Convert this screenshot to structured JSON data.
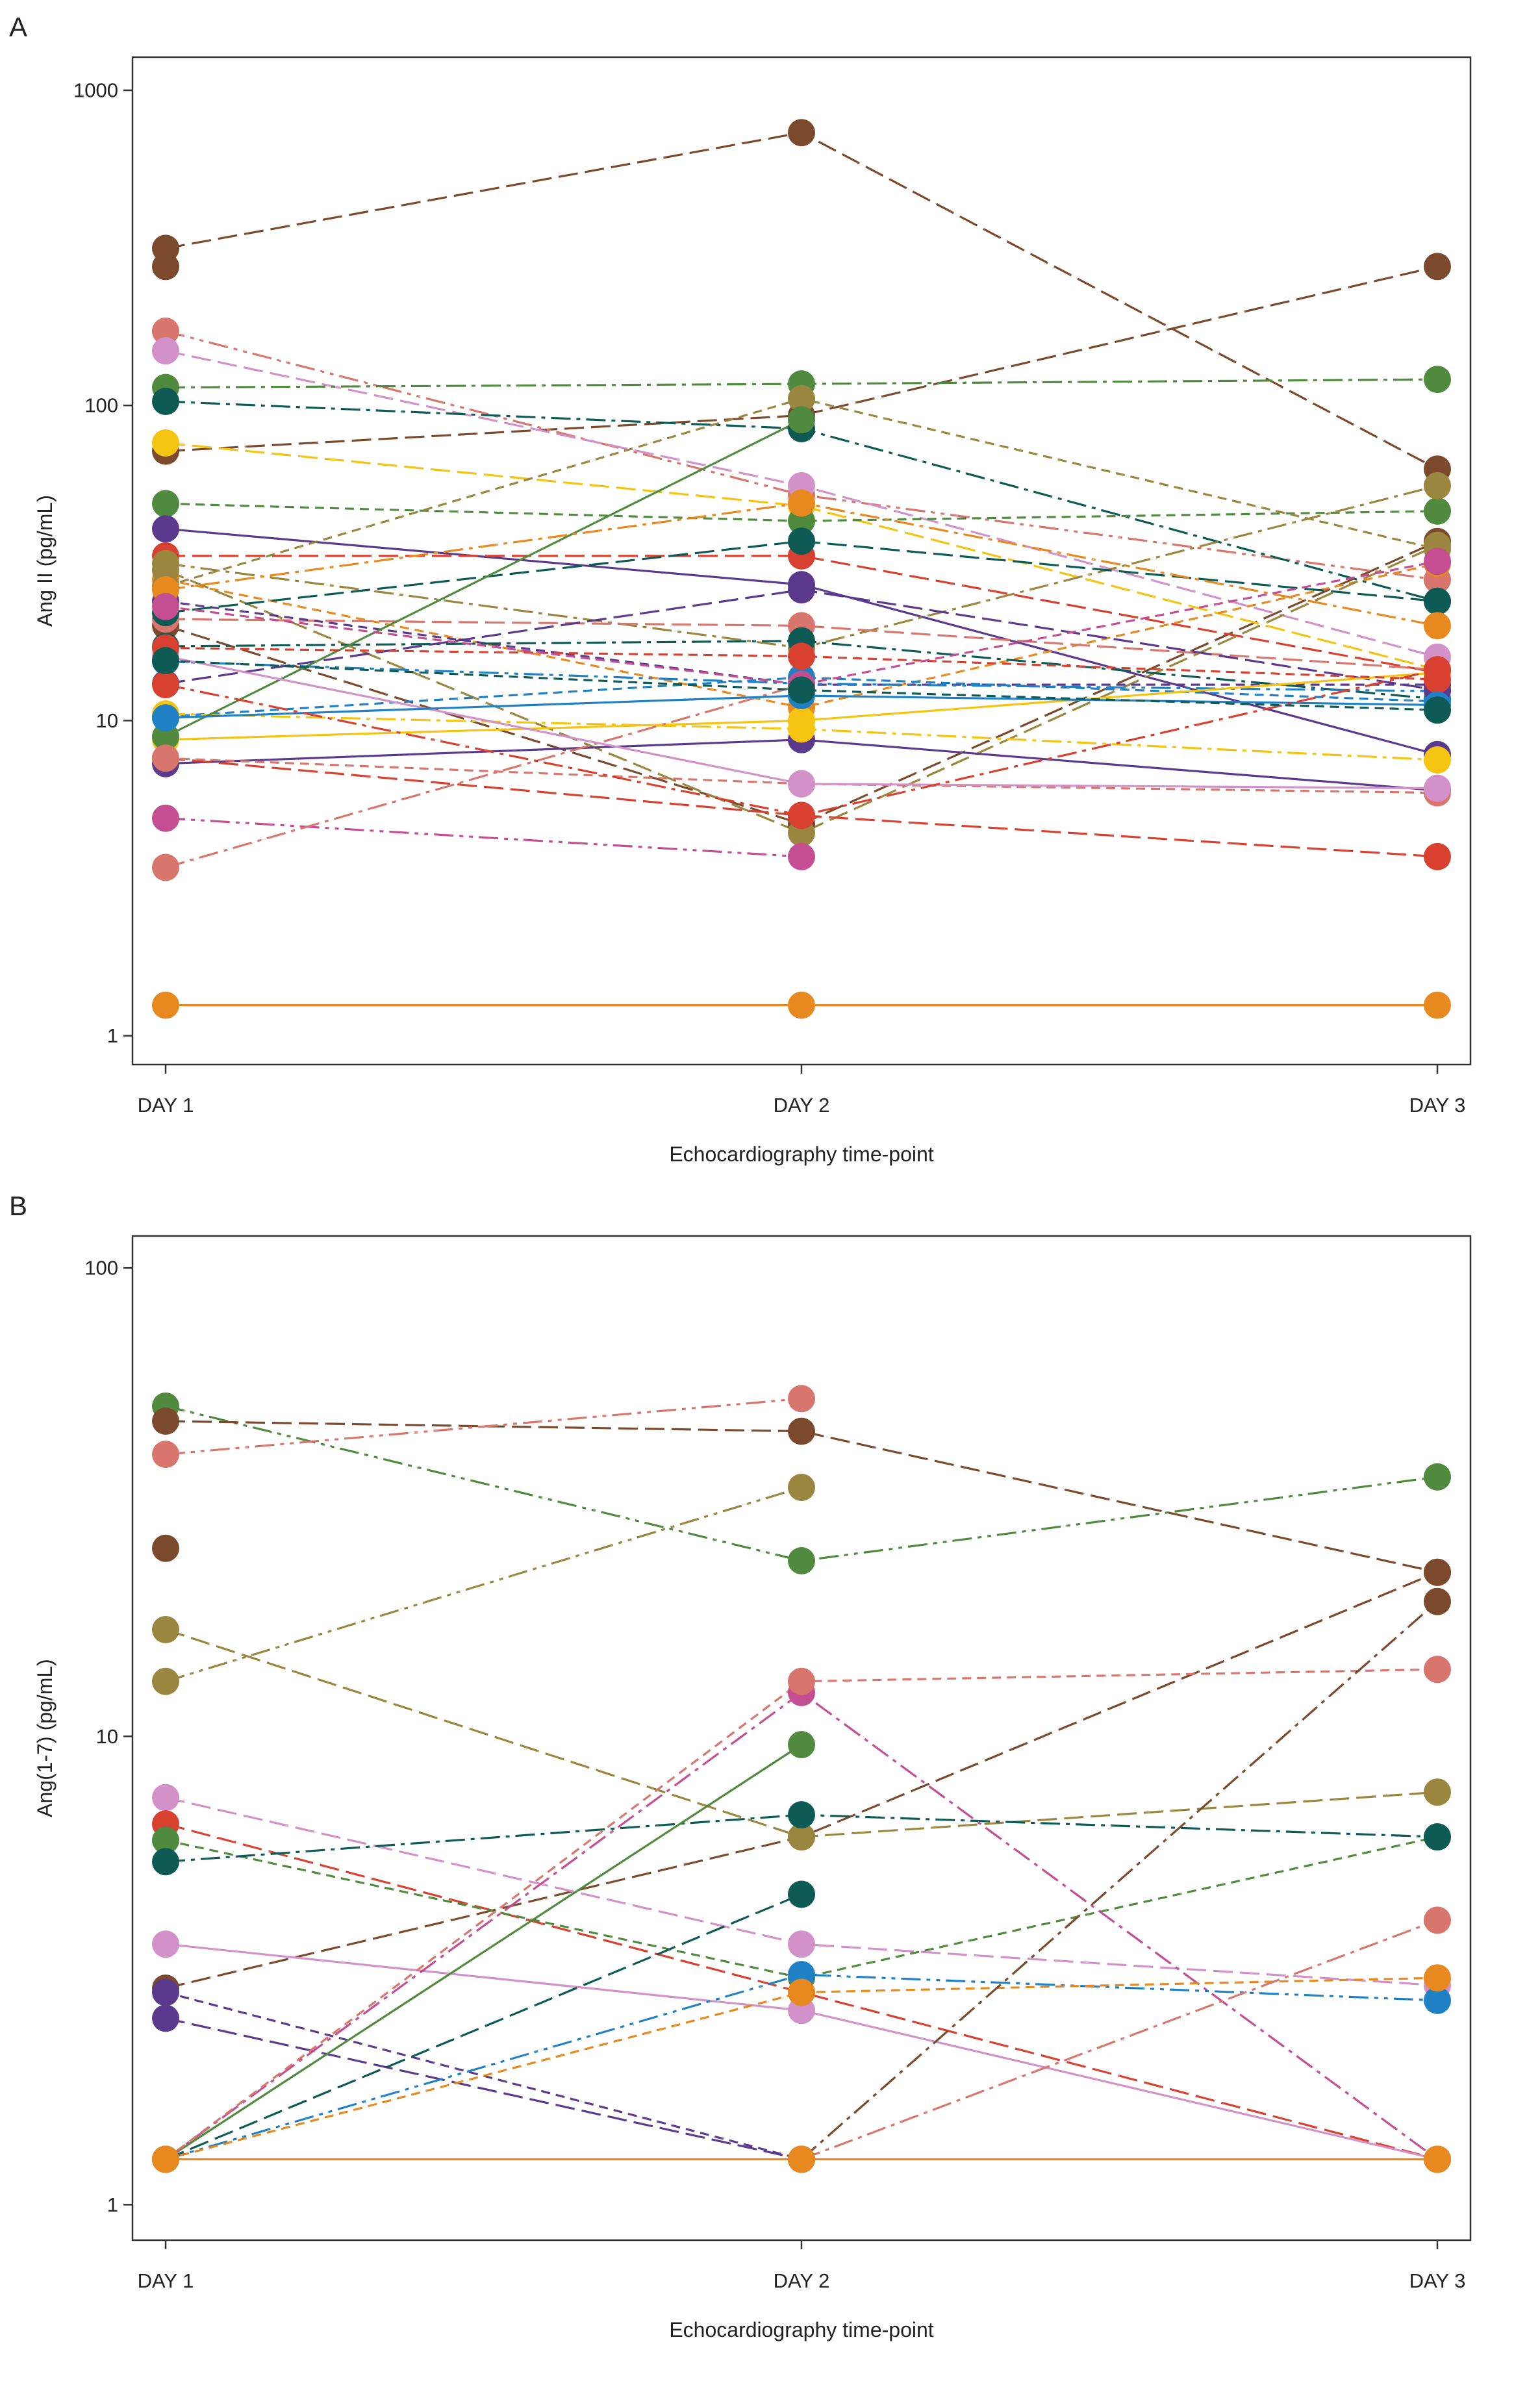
{
  "chart_data": [
    {
      "panel": "A",
      "type": "line",
      "yscale": "log",
      "xlabel": "Echocardiography time-point",
      "ylabel": "Ang II (pg/mL)",
      "categories": [
        "DAY 1",
        "DAY 2",
        "DAY 3"
      ],
      "yticks": [
        1000,
        100,
        10,
        1
      ],
      "ylim": [
        0.81,
        1274
      ],
      "grid": false,
      "series": [
        {
          "color": "#7b4a2c",
          "dash": 2,
          "values": [
            315,
            734,
            62.8
          ]
        },
        {
          "color": "#7b4a2c",
          "dash": 2,
          "values": [
            71.6,
            93,
            276
          ]
        },
        {
          "color": "#7b4a2c",
          "dash": 0,
          "values": [
            276,
            null,
            null
          ]
        },
        {
          "color": "#7b4a2c",
          "dash": 2,
          "values": [
            20,
            4.7,
            37
          ]
        },
        {
          "color": "#d8756c",
          "dash": 4,
          "values": [
            172,
            52,
            28
          ]
        },
        {
          "color": "#d391c9",
          "dash": 2,
          "values": [
            149,
            55.6,
            15.9
          ]
        },
        {
          "color": "#4f8a3f",
          "dash": 3,
          "values": [
            114,
            117,
            121
          ]
        },
        {
          "color": "#0e5b55",
          "dash": 3,
          "values": [
            103,
            84.4,
            23.9
          ]
        },
        {
          "color": "#f4c411",
          "dash": 2,
          "values": [
            76,
            48,
            14.5
          ]
        },
        {
          "color": "#4f8a3f",
          "dash": 1,
          "values": [
            48.8,
            43,
            46.2
          ]
        },
        {
          "color": "#5b3a8d",
          "dash": 0,
          "values": [
            40.6,
            27,
            7.8
          ]
        },
        {
          "color": "#d8402f",
          "dash": 2,
          "values": [
            33.3,
            33.3,
            14.2
          ]
        },
        {
          "color": "#9a863e",
          "dash": 3,
          "values": [
            31.5,
            17,
            55.6
          ]
        },
        {
          "color": "#e8891f",
          "dash": 1,
          "values": [
            28,
            11,
            31.5
          ]
        },
        {
          "color": "#9a863e",
          "dash": 2,
          "values": [
            30,
            4.4,
            36
          ]
        },
        {
          "color": "#9a863e",
          "dash": 1,
          "values": [
            26.7,
            105,
            35
          ]
        },
        {
          "color": "#d8756c",
          "dash": 2,
          "values": [
            21,
            20,
            14.5
          ]
        },
        {
          "color": "#5b3a8d",
          "dash": 1,
          "values": [
            23.9,
            13,
            13
          ]
        },
        {
          "color": "#0e5b55",
          "dash": 2,
          "values": [
            22,
            37.1,
            23.9
          ]
        },
        {
          "color": "#0e5b55",
          "dash": 3,
          "values": [
            17.2,
            17.9,
            11.7
          ]
        },
        {
          "color": "#1f80c5",
          "dash": 4,
          "values": [
            15.4,
            13.1,
            12.4
          ]
        },
        {
          "color": "#1f80c5",
          "dash": 1,
          "values": [
            10.3,
            13.7,
            11.5
          ]
        },
        {
          "color": "#5b3a8d",
          "dash": 2,
          "values": [
            13.1,
            26,
            12.5
          ]
        },
        {
          "color": "#5b3a8d",
          "dash": 0,
          "values": [
            7.3,
            8.7,
            6.0
          ]
        },
        {
          "color": "#f4c411",
          "dash": 0,
          "values": [
            8.7,
            10,
            14.2
          ]
        },
        {
          "color": "#f4c411",
          "dash": 3,
          "values": [
            10.5,
            9.4,
            7.5
          ]
        },
        {
          "color": "#4f8a3f",
          "dash": 0,
          "values": [
            8.9,
            90,
            null
          ]
        },
        {
          "color": "#d8402f",
          "dash": 2,
          "values": [
            7.6,
            5.0,
            3.7
          ]
        },
        {
          "color": "#d8756c",
          "dash": 1,
          "values": [
            7.6,
            6.3,
            5.9
          ]
        },
        {
          "color": "#c54d91",
          "dash": 4,
          "values": [
            4.9,
            3.7,
            null
          ]
        },
        {
          "color": "#d8756c",
          "dash": 3,
          "values": [
            3.42,
            13,
            null
          ]
        },
        {
          "color": "#d391c9",
          "dash": 0,
          "values": [
            16,
            6.3,
            6.1
          ]
        },
        {
          "color": "#d8402f",
          "dash": 1,
          "values": [
            17,
            16,
            13.5
          ]
        },
        {
          "color": "#e8891f",
          "dash": 3,
          "values": [
            26,
            49,
            20
          ]
        },
        {
          "color": "#c54d91",
          "dash": 1,
          "values": [
            23,
            13,
            32
          ]
        },
        {
          "color": "#1f80c5",
          "dash": 0,
          "values": [
            10.2,
            12,
            11.2
          ]
        },
        {
          "color": "#d8402f",
          "dash": 3,
          "values": [
            13,
            5.0,
            14.5
          ]
        },
        {
          "color": "#0e5b55",
          "dash": 1,
          "values": [
            15.5,
            12.5,
            10.8
          ]
        },
        {
          "color": "#e8891f",
          "dash": 0,
          "values": [
            1.25,
            1.25,
            1.25
          ]
        }
      ]
    },
    {
      "panel": "B",
      "type": "line",
      "yscale": "log",
      "xlabel": "Echocardiography time-point",
      "ylabel": "Ang(1-7) (pg/mL)",
      "categories": [
        "DAY 1",
        "DAY 2",
        "DAY 3"
      ],
      "yticks": [
        100,
        10,
        1
      ],
      "ylim": [
        0.84,
        117
      ],
      "grid": false,
      "series": [
        {
          "color": "#7b4a2c",
          "dash": 2,
          "values": [
            2.9,
            6.1,
            22.4
          ]
        },
        {
          "color": "#4f8a3f",
          "dash": 4,
          "values": [
            50.7,
            23.7,
            35.8
          ]
        },
        {
          "color": "#7b4a2c",
          "dash": 2,
          "values": [
            47.1,
            44.8,
            22.4
          ]
        },
        {
          "color": "#d8756c",
          "dash": 4,
          "values": [
            40,
            52.6,
            null
          ]
        },
        {
          "color": "#7b4a2c",
          "dash": 0,
          "values": [
            25.2,
            null,
            null
          ]
        },
        {
          "color": "#9a863e",
          "dash": 2,
          "values": [
            16.9,
            6.1,
            7.6
          ]
        },
        {
          "color": "#9a863e",
          "dash": 4,
          "values": [
            13.1,
            34,
            null
          ]
        },
        {
          "color": "#d391c9",
          "dash": 2,
          "values": [
            7.4,
            3.6,
            2.94
          ]
        },
        {
          "color": "#d8402f",
          "dash": 2,
          "values": [
            6.5,
            2.84,
            1.25
          ]
        },
        {
          "color": "#4f8a3f",
          "dash": 1,
          "values": [
            6.0,
            3.05,
            6.1
          ]
        },
        {
          "color": "#0e5b55",
          "dash": 3,
          "values": [
            5.4,
            6.8,
            6.1
          ]
        },
        {
          "color": "#d391c9",
          "dash": 0,
          "values": [
            3.6,
            2.6,
            1.25
          ]
        },
        {
          "color": "#5b3a8d",
          "dash": 2,
          "values": [
            2.5,
            1.25,
            null
          ]
        },
        {
          "color": "#5b3a8d",
          "dash": 1,
          "values": [
            2.84,
            1.25,
            null
          ]
        },
        {
          "color": "#4f8a3f",
          "dash": 0,
          "values": [
            1.25,
            9.6,
            null
          ]
        },
        {
          "color": "#c54d91",
          "dash": 3,
          "values": [
            1.25,
            12.4,
            1.25
          ]
        },
        {
          "color": "#d8756c",
          "dash": 1,
          "values": [
            1.25,
            13.1,
            13.9
          ]
        },
        {
          "color": "#0e5b55",
          "dash": 2,
          "values": [
            1.25,
            4.6,
            null
          ]
        },
        {
          "color": "#1f80c5",
          "dash": 4,
          "values": [
            1.25,
            3.1,
            2.73
          ]
        },
        {
          "color": "#e8891f",
          "dash": 1,
          "values": [
            1.25,
            2.84,
            3.05
          ]
        },
        {
          "color": "#7b4a2c",
          "dash": 3,
          "values": [
            null,
            1.25,
            19.4
          ]
        },
        {
          "color": "#d8756c",
          "dash": 3,
          "values": [
            null,
            1.25,
            4.05
          ]
        },
        {
          "color": "#e8891f",
          "dash": 0,
          "values": [
            1.25,
            1.25,
            1.25
          ]
        }
      ]
    }
  ]
}
